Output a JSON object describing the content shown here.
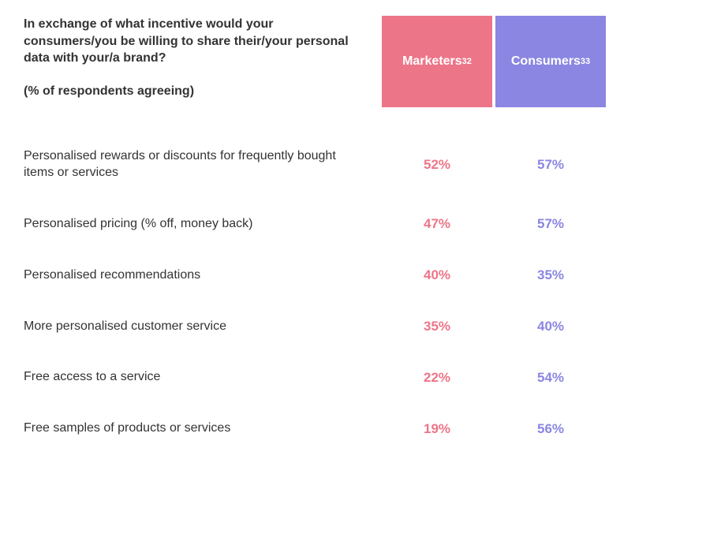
{
  "table": {
    "question_title": "In exchange of what incentive would your consumers/you be willing to share their/your personal data with your/a brand?",
    "question_subtitle": "(% of respondents agreeing)",
    "columns": [
      {
        "label": "Marketers",
        "sup": "32",
        "bg_color": "#ed7588",
        "text_color": "#ed7588"
      },
      {
        "label": "Consumers",
        "sup": "33",
        "bg_color": "#8a86e2",
        "text_color": "#8a86e2"
      }
    ],
    "rows": [
      {
        "label": "Personalised rewards or discounts for frequently bought items or services",
        "values": [
          "52%",
          "57%"
        ]
      },
      {
        "label": "Personalised pricing (% off, money back)",
        "values": [
          "47%",
          "57%"
        ]
      },
      {
        "label": "Personalised recommendations",
        "values": [
          "40%",
          "35%"
        ]
      },
      {
        "label": "More personalised customer service",
        "values": [
          "35%",
          "40%"
        ]
      },
      {
        "label": "Free access to a service",
        "values": [
          "22%",
          "54%"
        ]
      },
      {
        "label": "Free samples of products or services",
        "values": [
          "19%",
          "56%"
        ]
      }
    ],
    "title_fontsize": 16,
    "row_fontsize": 16,
    "value_fontsize": 17,
    "background_color": "#ffffff",
    "text_color": "#333333",
    "header_text_color": "#ffffff"
  }
}
